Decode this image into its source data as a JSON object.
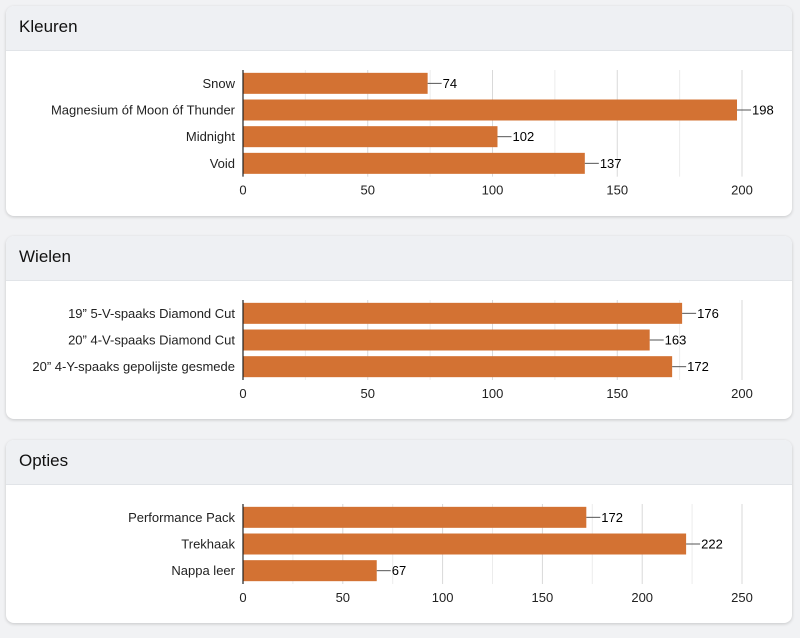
{
  "colors": {
    "bar": "#d37233",
    "grid": "#d9d9d9",
    "axis": "#222222"
  },
  "chart_data": [
    {
      "type": "bar",
      "orientation": "horizontal",
      "title": "Kleuren",
      "categories": [
        "Snow",
        "Magnesium óf Moon óf Thunder",
        "Midnight",
        "Void"
      ],
      "values": [
        74,
        198,
        102,
        137
      ],
      "xlim": [
        0,
        200
      ],
      "xticks": [
        0,
        50,
        100,
        150,
        200
      ],
      "minor_ticks": [
        25,
        75,
        125,
        175
      ],
      "grid": true
    },
    {
      "type": "bar",
      "orientation": "horizontal",
      "title": "Wielen",
      "categories": [
        "19” 5-V-spaaks Diamond Cut",
        "20” 4-V-spaaks Diamond Cut",
        "20” 4-Y-spaaks gepolijste gesmede"
      ],
      "values": [
        176,
        163,
        172
      ],
      "xlim": [
        0,
        200
      ],
      "xticks": [
        0,
        50,
        100,
        150,
        200
      ],
      "minor_ticks": [
        25,
        75,
        125,
        175
      ],
      "grid": true
    },
    {
      "type": "bar",
      "orientation": "horizontal",
      "title": "Opties",
      "categories": [
        "Performance Pack",
        "Trekhaak",
        "Nappa leer"
      ],
      "values": [
        172,
        222,
        67
      ],
      "xlim": [
        0,
        250
      ],
      "xticks": [
        0,
        50,
        100,
        150,
        200,
        250
      ],
      "minor_ticks": [
        25,
        75,
        125,
        175,
        225
      ],
      "grid": true
    }
  ]
}
